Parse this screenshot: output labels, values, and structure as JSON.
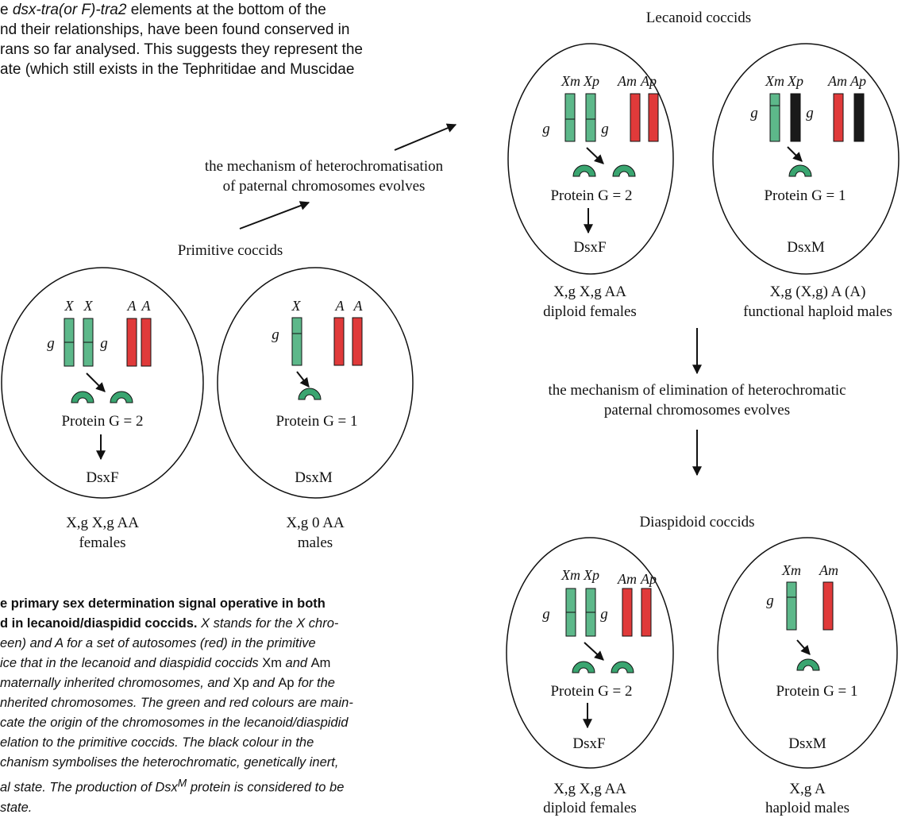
{
  "intro_lines": [
    {
      "pre": "e ",
      "em": "dsx-tra(or F)-tra2",
      "post": " elements at the bottom of the"
    },
    {
      "pre": "nd their relationships, have been found conserved in",
      "em": "",
      "post": ""
    },
    {
      "pre": "rans so far analysed. This suggests they represent the",
      "em": "",
      "post": ""
    },
    {
      "pre": "ate (which still exists in the Tephritidae and Muscidae",
      "em": "",
      "post": ""
    }
  ],
  "caption": {
    "bold_1": "e primary sex determination signal operative in both",
    "bold_2": "d in lecanoid/diaspidid coccids.",
    "l2_italic": " X stands for the X chro-",
    "l3": "een) and A for a set of autosomes (red) in the primitive",
    "l4_a": "ice that in the lecanoid and diaspidid coccids ",
    "l4_xm": "Xm",
    "l4_and": " and ",
    "l4_am": "Am",
    "l5_a": " maternally inherited chromosomes, and ",
    "l5_xp": "Xp",
    "l5_and": " and ",
    "l5_ap": "Ap",
    "l5_b": " for the",
    "l6": "nherited chromosomes. The green and red colours are main-",
    "l7": "cate the origin of the chromosomes in the lecanoid/diaspidid",
    "l8": "elation to the primitive coccids. The black colour in the",
    "l9": "chanism symbolises the heterochromatic, genetically inert,",
    "l10_a": "al state. The production of Dsx",
    "l10_sup": "M",
    "l10_b": " protein is considered to be",
    "l11": "state."
  },
  "headings": {
    "lecanoid": "Lecanoid coccids",
    "primitive": "Primitive coccids",
    "diaspidoid": "Diaspidoid coccids"
  },
  "mechanisms": {
    "hetero_1": "the mechanism of heterochromatisation",
    "hetero_2": "of paternal chromosomes evolves",
    "elim_1": "the mechanism of elimination of heterochromatic",
    "elim_2": "paternal chromosomes evolves"
  },
  "cells": {
    "prim_female": {
      "chr_labels": [
        "X",
        "X",
        "A",
        "A"
      ],
      "gene": "g",
      "protein": "Protein G = 2",
      "product": "DsxF",
      "genotype": "X,g X,g AA",
      "sex": "females"
    },
    "prim_male": {
      "chr_labels": [
        "X",
        "A",
        "A"
      ],
      "gene": "g",
      "protein": "Protein G = 1",
      "product": "DsxM",
      "genotype": "X,g 0 AA",
      "sex": "males"
    },
    "lec_female": {
      "chr_labels": [
        "Xm",
        "Xp",
        "Am",
        "Ap"
      ],
      "gene": "g",
      "protein": "Protein G = 2",
      "product": "DsxF",
      "genotype": "X,g X,g AA",
      "sex": "diploid females"
    },
    "lec_male": {
      "chr_labels": [
        "Xm",
        "Xp",
        "Am",
        "Ap"
      ],
      "gene": "g",
      "protein": "Protein G = 1",
      "product": "DsxM",
      "genotype": "X,g (X,g) A (A)",
      "sex": "functional haploid males"
    },
    "dia_female": {
      "chr_labels": [
        "Xm",
        "Xp",
        "Am",
        "Ap"
      ],
      "gene": "g",
      "protein": "Protein G = 2",
      "product": "DsxF",
      "genotype": "X,g X,g AA",
      "sex": "diploid females"
    },
    "dia_male": {
      "chr_labels": [
        "Xm",
        "Am"
      ],
      "gene": "g",
      "protein": "Protein G = 1",
      "product": "DsxM",
      "genotype": "X,g A",
      "sex": "haploid males"
    }
  },
  "colors": {
    "x_chromosome": "#5db88a",
    "autosome": "#e03a3a",
    "heterochromatic": "#1a1a1a",
    "protein": "#3aa570"
  }
}
